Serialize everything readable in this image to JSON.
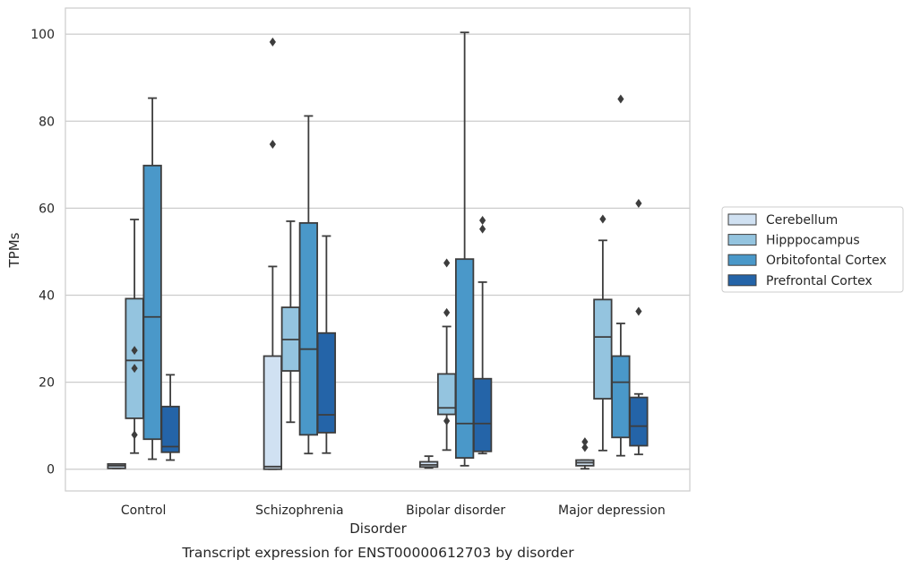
{
  "chart_data": {
    "type": "boxplot",
    "caption": "Transcript expression for ENST00000612703 by disorder",
    "xlabel": "Disorder",
    "ylabel": "TPMs",
    "ylim": [
      -5,
      106
    ],
    "yticks": [
      0,
      20,
      40,
      60,
      80,
      100
    ],
    "grid": "horizontal",
    "legend_position": "right",
    "categories": [
      "Control",
      "Schizophrenia",
      "Bipolar disorder",
      "Major depression"
    ],
    "series": [
      {
        "name": "Cerebellum",
        "color": "#d0e1f2",
        "boxes": [
          {
            "whisker_low": 0.2,
            "q1": 0.2,
            "median": 0.8,
            "q3": 1.2,
            "whisker_high": 1.2,
            "outliers": []
          },
          {
            "whisker_low": 0.0,
            "q1": 0.0,
            "median": 0.6,
            "q3": 26.0,
            "whisker_high": 46.6,
            "outliers": [
              74.7,
              98.2
            ]
          },
          {
            "whisker_low": 0.3,
            "q1": 0.5,
            "median": 1.0,
            "q3": 1.7,
            "whisker_high": 3.0,
            "outliers": []
          },
          {
            "whisker_low": 0.1,
            "q1": 0.8,
            "median": 1.5,
            "q3": 2.1,
            "whisker_high": 2.1,
            "outliers": [
              5.0,
              6.3
            ]
          }
        ]
      },
      {
        "name": "Hipppocampus",
        "color": "#94c4df",
        "boxes": [
          {
            "whisker_low": 3.7,
            "q1": 11.7,
            "median": 25.0,
            "q3": 39.2,
            "whisker_high": 57.4,
            "outliers": [
              7.9,
              23.2,
              27.3
            ]
          },
          {
            "whisker_low": 10.8,
            "q1": 22.6,
            "median": 29.8,
            "q3": 37.2,
            "whisker_high": 57.0,
            "outliers": []
          },
          {
            "whisker_low": 4.4,
            "q1": 12.6,
            "median": 14.1,
            "q3": 21.9,
            "whisker_high": 32.8,
            "outliers": [
              11.1,
              36.0,
              47.4
            ]
          },
          {
            "whisker_low": 4.3,
            "q1": 16.2,
            "median": 30.4,
            "q3": 39.0,
            "whisker_high": 52.6,
            "outliers": [
              57.5
            ]
          }
        ]
      },
      {
        "name": "Orbitofontal Cortex",
        "color": "#4a98c9",
        "boxes": [
          {
            "whisker_low": 2.3,
            "q1": 6.9,
            "median": 35.0,
            "q3": 69.8,
            "whisker_high": 85.3,
            "outliers": []
          },
          {
            "whisker_low": 3.6,
            "q1": 7.9,
            "median": 27.6,
            "q3": 56.6,
            "whisker_high": 81.2,
            "outliers": []
          },
          {
            "whisker_low": 0.8,
            "q1": 2.6,
            "median": 10.5,
            "q3": 48.3,
            "whisker_high": 100.4,
            "outliers": []
          },
          {
            "whisker_low": 3.1,
            "q1": 7.3,
            "median": 20.0,
            "q3": 26.0,
            "whisker_high": 33.5,
            "outliers": [
              85.1
            ]
          }
        ]
      },
      {
        "name": "Prefrontal Cortex",
        "color": "#2464a8",
        "boxes": [
          {
            "whisker_low": 2.1,
            "q1": 3.9,
            "median": 5.2,
            "q3": 14.4,
            "whisker_high": 21.7,
            "outliers": []
          },
          {
            "whisker_low": 3.7,
            "q1": 8.4,
            "median": 12.5,
            "q3": 31.3,
            "whisker_high": 53.6,
            "outliers": []
          },
          {
            "whisker_low": 3.6,
            "q1": 4.1,
            "median": 10.5,
            "q3": 20.8,
            "whisker_high": 43.0,
            "outliers": [
              55.2,
              57.2
            ]
          },
          {
            "whisker_low": 3.4,
            "q1": 5.4,
            "median": 9.9,
            "q3": 16.5,
            "whisker_high": 17.3,
            "outliers": [
              36.3,
              61.1
            ]
          }
        ]
      }
    ]
  }
}
